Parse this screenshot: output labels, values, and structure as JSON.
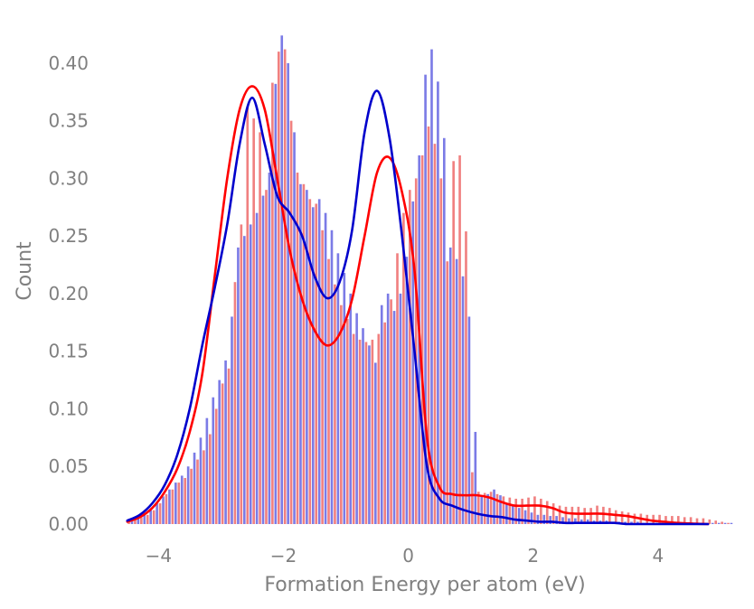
{
  "chart_data": {
    "type": "bar",
    "title": "",
    "xlabel": "Formation Energy per atom (eV)",
    "ylabel": "Count",
    "xlim": [
      -4.7,
      4.9
    ],
    "ylim": [
      0,
      0.425
    ],
    "xticks": [
      -4,
      -2,
      0,
      2,
      4
    ],
    "xtick_labels": [
      "−4",
      "−2",
      "0",
      "2",
      "4"
    ],
    "yticks": [
      0,
      0.05,
      0.1,
      0.15,
      0.2,
      0.25,
      0.3,
      0.35,
      0.4
    ],
    "ytick_labels": [
      "0.00",
      "0.05",
      "0.10",
      "0.15",
      "0.20",
      "0.25",
      "0.30",
      "0.35",
      "0.40"
    ],
    "grid": false,
    "legend": false,
    "bin_edges_start": -4.5,
    "bin_width": 0.1,
    "series": [
      {
        "color": "#ff0000",
        "bar_color": "#f08080",
        "values": [
          0.002,
          0.004,
          0.006,
          0.008,
          0.012,
          0.018,
          0.026,
          0.03,
          0.036,
          0.04,
          0.048,
          0.056,
          0.064,
          0.078,
          0.1,
          0.122,
          0.135,
          0.21,
          0.26,
          0.362,
          0.352,
          0.34,
          0.29,
          0.383,
          0.41,
          0.412,
          0.35,
          0.305,
          0.295,
          0.282,
          0.278,
          0.255,
          0.23,
          0.208,
          0.19,
          0.178,
          0.165,
          0.16,
          0.158,
          0.16,
          0.165,
          0.175,
          0.195,
          0.235,
          0.27,
          0.29,
          0.3,
          0.32,
          0.345,
          0.33,
          0.3,
          0.228,
          0.315,
          0.32,
          0.254,
          0.045,
          0.028,
          0.027,
          0.028,
          0.026,
          0.024,
          0.023,
          0.022,
          0.022,
          0.023,
          0.024,
          0.022,
          0.02,
          0.018,
          0.016,
          0.015,
          0.015,
          0.015,
          0.014,
          0.014,
          0.016,
          0.015,
          0.014,
          0.012,
          0.011,
          0.01,
          0.009,
          0.009,
          0.008,
          0.008,
          0.008,
          0.007,
          0.007,
          0.007,
          0.006,
          0.006,
          0.005,
          0.005,
          0.004,
          0.003,
          0.002,
          0.001
        ]
      },
      {
        "color": "#0000cc",
        "bar_color": "#7b7be6",
        "values": [
          0.003,
          0.005,
          0.008,
          0.012,
          0.018,
          0.024,
          0.03,
          0.036,
          0.042,
          0.05,
          0.062,
          0.075,
          0.092,
          0.11,
          0.125,
          0.142,
          0.18,
          0.24,
          0.25,
          0.26,
          0.27,
          0.285,
          0.305,
          0.382,
          0.424,
          0.4,
          0.34,
          0.295,
          0.29,
          0.275,
          0.282,
          0.27,
          0.255,
          0.235,
          0.218,
          0.2,
          0.183,
          0.17,
          0.155,
          0.14,
          0.19,
          0.2,
          0.185,
          0.2,
          0.232,
          0.28,
          0.32,
          0.39,
          0.412,
          0.384,
          0.335,
          0.24,
          0.23,
          0.215,
          0.18,
          0.08,
          0.025,
          0.026,
          0.03,
          0.025,
          0.018,
          0.016,
          0.014,
          0.012,
          0.01,
          0.008,
          0.008,
          0.007,
          0.007,
          0.006,
          0.005,
          0.005,
          0.004,
          0.004,
          0.003,
          0.003,
          0.003,
          0.002,
          0.002,
          0.002,
          0.002,
          0.002,
          0.001,
          0.001,
          0.001,
          0.001,
          0.001,
          0.001,
          0.001,
          0.001,
          0.001,
          0.001,
          0.001,
          0.001,
          0.001,
          0.001,
          0.001
        ]
      }
    ],
    "kde": [
      {
        "color": "#ff0000",
        "x": [
          -4.5,
          -4.3,
          -4.1,
          -3.9,
          -3.7,
          -3.5,
          -3.3,
          -3.1,
          -2.9,
          -2.7,
          -2.5,
          -2.3,
          -2.1,
          -1.9,
          -1.7,
          -1.5,
          -1.3,
          -1.1,
          -0.9,
          -0.7,
          -0.5,
          -0.3,
          -0.1,
          0.1,
          0.3,
          0.5,
          0.7,
          0.9,
          1.1,
          1.3,
          1.5,
          1.7,
          1.9,
          2.1,
          2.3,
          2.5,
          2.7,
          2.9,
          3.1,
          3.3,
          3.5,
          3.7,
          3.9,
          4.1,
          4.3,
          4.5,
          4.8
        ],
        "y": [
          0.002,
          0.006,
          0.014,
          0.028,
          0.048,
          0.08,
          0.13,
          0.215,
          0.3,
          0.36,
          0.38,
          0.36,
          0.3,
          0.238,
          0.195,
          0.168,
          0.155,
          0.165,
          0.195,
          0.25,
          0.305,
          0.318,
          0.288,
          0.22,
          0.075,
          0.032,
          0.026,
          0.025,
          0.025,
          0.023,
          0.019,
          0.016,
          0.016,
          0.016,
          0.014,
          0.01,
          0.009,
          0.009,
          0.009,
          0.008,
          0.007,
          0.005,
          0.003,
          0.002,
          0.001,
          0.0005,
          0.0
        ]
      },
      {
        "color": "#0000cc",
        "x": [
          -4.5,
          -4.3,
          -4.1,
          -3.9,
          -3.7,
          -3.5,
          -3.3,
          -3.1,
          -2.9,
          -2.7,
          -2.5,
          -2.3,
          -2.1,
          -1.9,
          -1.7,
          -1.5,
          -1.3,
          -1.1,
          -0.9,
          -0.7,
          -0.5,
          -0.3,
          -0.1,
          0.1,
          0.3,
          0.5,
          0.7,
          0.9,
          1.1,
          1.3,
          1.5,
          1.7,
          1.9,
          2.1,
          2.3,
          2.5,
          2.7,
          2.9,
          3.1,
          3.3,
          3.5,
          3.7,
          3.9,
          4.1,
          4.3,
          4.5,
          4.8
        ],
        "y": [
          0.003,
          0.008,
          0.018,
          0.034,
          0.06,
          0.1,
          0.155,
          0.205,
          0.26,
          0.33,
          0.37,
          0.33,
          0.285,
          0.27,
          0.25,
          0.215,
          0.196,
          0.21,
          0.255,
          0.34,
          0.376,
          0.335,
          0.25,
          0.15,
          0.05,
          0.022,
          0.016,
          0.012,
          0.009,
          0.007,
          0.006,
          0.004,
          0.003,
          0.002,
          0.002,
          0.001,
          0.001,
          0.001,
          0.001,
          0.001,
          0.0,
          0.0,
          0.0,
          0.0,
          0.0,
          0.0,
          0.0
        ]
      }
    ]
  }
}
